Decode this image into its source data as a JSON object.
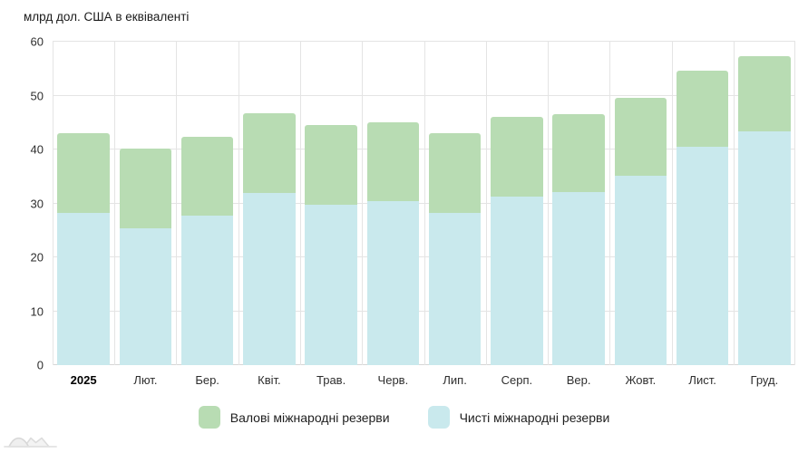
{
  "chart_data": {
    "type": "bar",
    "stacked": true,
    "title": "млрд дол. США в еквіваленті",
    "categories": [
      "2025",
      "Лют.",
      "Бер.",
      "Квіт.",
      "Трав.",
      "Черв.",
      "Лип.",
      "Серп.",
      "Вер.",
      "Жовт.",
      "Лист.",
      "Груд."
    ],
    "series": [
      {
        "name": "Валові міжнародні резерви",
        "color": "#b8dcb3",
        "values": [
          43.0,
          40.1,
          42.4,
          46.7,
          44.5,
          45.1,
          43.0,
          46.0,
          46.6,
          49.5,
          54.7,
          57.3
        ]
      },
      {
        "name": "Чисті міжнародні резерви",
        "color": "#c9e9ed",
        "values": [
          28.2,
          25.4,
          27.8,
          31.9,
          29.8,
          30.5,
          28.2,
          31.3,
          32.1,
          35.2,
          40.5,
          43.3
        ]
      }
    ],
    "ylim": [
      0,
      60
    ],
    "yticks": [
      0,
      10,
      20,
      30,
      40,
      50,
      60
    ],
    "grid": "horizontal-and-vertical",
    "legend_position": "bottom",
    "bar_note": "total bar height = gross reserves; bottom light-blue segment = net reserves; green visible segment = gross minus net",
    "first_category_bold": true
  },
  "footer": {
    "logo": "mountains-sketch-logo"
  }
}
